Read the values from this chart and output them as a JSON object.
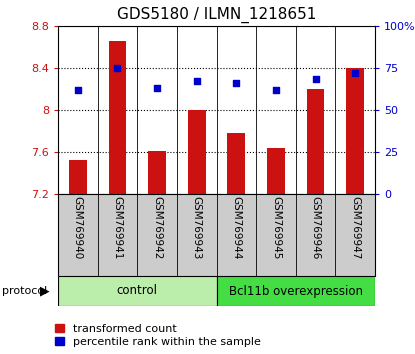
{
  "title": "GDS5180 / ILMN_1218651",
  "samples": [
    "GSM769940",
    "GSM769941",
    "GSM769942",
    "GSM769943",
    "GSM769944",
    "GSM769945",
    "GSM769946",
    "GSM769947"
  ],
  "transformed_counts": [
    7.52,
    8.65,
    7.61,
    8.0,
    7.78,
    7.64,
    8.2,
    8.4
  ],
  "percentile_ranks": [
    62,
    75,
    63,
    67,
    66,
    62,
    68,
    72
  ],
  "ylim_left": [
    7.2,
    8.8
  ],
  "yticks_left": [
    7.2,
    7.6,
    8.0,
    8.4,
    8.8
  ],
  "yticklabels_left": [
    "7.2",
    "7.6",
    "8",
    "8.4",
    "8.8"
  ],
  "ylim_right": [
    0,
    100
  ],
  "yticks_right": [
    0,
    25,
    50,
    75,
    100
  ],
  "yticklabels_right": [
    "0",
    "25",
    "50",
    "75",
    "100%"
  ],
  "bar_color": "#cc1111",
  "dot_color": "#0000cc",
  "bar_bottom": 7.2,
  "groups": [
    {
      "label": "control",
      "indices": [
        0,
        1,
        2,
        3
      ],
      "color": "#bbeeaa"
    },
    {
      "label": "Bcl11b overexpression",
      "indices": [
        4,
        5,
        6,
        7
      ],
      "color": "#44dd44"
    }
  ],
  "protocol_label": "protocol",
  "legend_bar_label": "transformed count",
  "legend_dot_label": "percentile rank within the sample",
  "title_fontsize": 11,
  "tick_fontsize": 8,
  "sample_label_fontsize": 7.5,
  "group_label_fontsize": 8.5,
  "legend_fontsize": 8,
  "grid_color": "#000000",
  "left_tick_color": "#cc1111",
  "right_tick_color": "#0000cc",
  "bg_color": "#ffffff",
  "label_bg_color": "#cccccc",
  "label_border_color": "#888888"
}
